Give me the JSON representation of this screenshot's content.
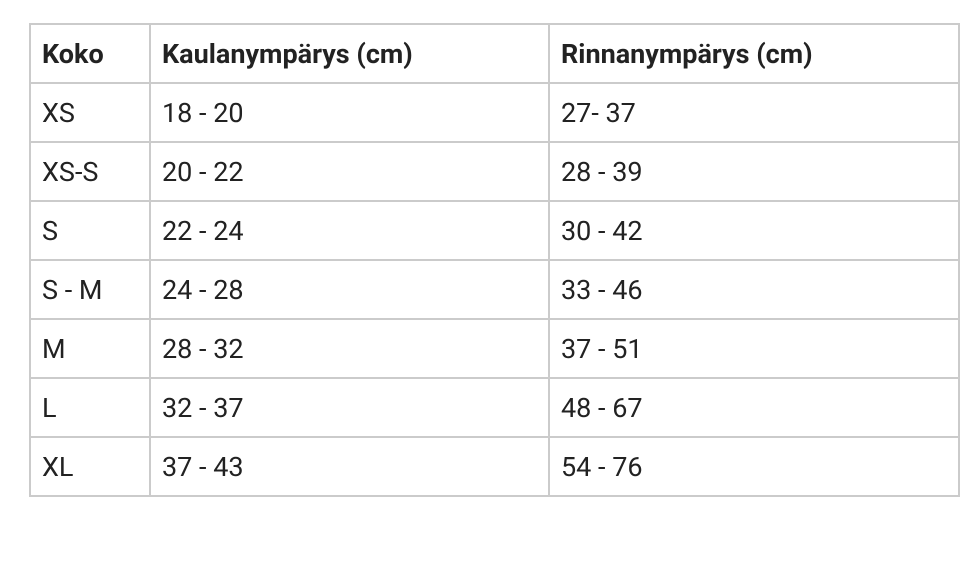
{
  "table": {
    "header": [
      "Koko",
      "Kaulanympärys (cm)",
      "Rinnanympärys (cm)"
    ],
    "rows": [
      [
        "XS",
        "18 - 20",
        "27- 37"
      ],
      [
        "XS-S",
        "20 - 22",
        "28 - 39"
      ],
      [
        "S",
        "22 - 24",
        "30 - 42"
      ],
      [
        "S - M",
        "24 - 28",
        "33 - 46"
      ],
      [
        "M",
        "28 - 32",
        "37 - 51"
      ],
      [
        "L",
        "32 - 37",
        "48 - 67"
      ],
      [
        "XL",
        "37 - 43",
        "54 - 76"
      ]
    ]
  }
}
